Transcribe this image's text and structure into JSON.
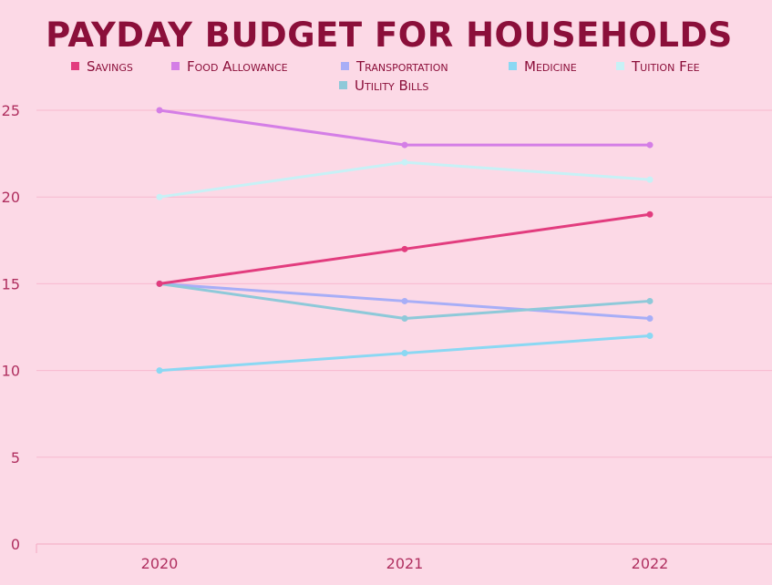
{
  "chart_data": {
    "type": "line",
    "title": "PAYDAY BUDGET FOR HOUSEHOLDS",
    "xlabel": "",
    "ylabel": "",
    "categories": [
      "2020",
      "2021",
      "2022"
    ],
    "ylim": [
      0,
      26
    ],
    "yticks": [
      0,
      5,
      10,
      15,
      20,
      25
    ],
    "grid": true,
    "legend_position": "top",
    "series": [
      {
        "name": "Savings",
        "values": [
          15,
          17,
          19
        ],
        "color": "#e23c7e"
      },
      {
        "name": "Food Allowance",
        "values": [
          25,
          23,
          23
        ],
        "color": "#d47ee6"
      },
      {
        "name": "Transportation",
        "values": [
          15,
          14,
          13
        ],
        "color": "#a7aef7"
      },
      {
        "name": "Medicine",
        "values": [
          10,
          11,
          12
        ],
        "color": "#8ad8f3"
      },
      {
        "name": "Tuition Fee",
        "values": [
          20,
          22,
          21
        ],
        "color": "#c7f1f6"
      },
      {
        "name": "Utility Bills",
        "values": [
          15,
          13,
          14
        ],
        "color": "#8ec9d9"
      }
    ]
  }
}
